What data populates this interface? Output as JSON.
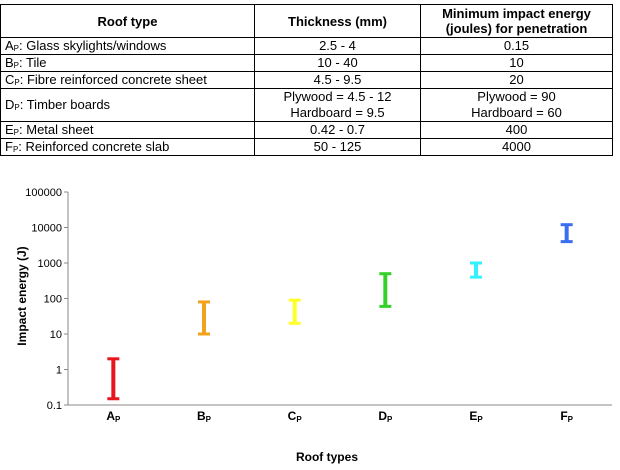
{
  "table": {
    "headers": [
      "Roof type",
      "Thickness (mm)",
      "Minimum impact energy (joules) for penetration"
    ],
    "rows": [
      {
        "letter": "A",
        "sub": "P",
        "name": ": Glass skylights/windows",
        "thickness": [
          "2.5 - 4"
        ],
        "energy": [
          "0.15"
        ]
      },
      {
        "letter": "B",
        "sub": "P",
        "name": ": Tile",
        "thickness": [
          "10 - 40"
        ],
        "energy": [
          "10"
        ]
      },
      {
        "letter": "C",
        "sub": "P",
        "name": ": Fibre reinforced concrete sheet",
        "thickness": [
          "4.5 - 9.5"
        ],
        "energy": [
          "20"
        ]
      },
      {
        "letter": "D",
        "sub": "P",
        "name": ": Timber boards",
        "thickness": [
          "Plywood = 4.5 - 12",
          "Hardboard = 9.5"
        ],
        "energy": [
          "Plywood = 90",
          "Hardboard = 60"
        ]
      },
      {
        "letter": "E",
        "sub": "P",
        "name": ": Metal sheet",
        "thickness": [
          "0.42 - 0.7"
        ],
        "energy": [
          "400"
        ]
      },
      {
        "letter": "F",
        "sub": "P",
        "name": ": Reinforced concrete slab",
        "thickness": [
          "50 - 125"
        ],
        "energy": [
          "4000"
        ]
      }
    ]
  },
  "chart_data": {
    "type": "range",
    "xlabel": "Roof types",
    "ylabel": "Impact energy (J)",
    "yscale": "log",
    "ylim": [
      0.1,
      100000
    ],
    "yticks": [
      "100000",
      "10000",
      "1000",
      "100",
      "10",
      "1",
      "0.1"
    ],
    "grid": false,
    "legend": "none",
    "categories": [
      {
        "letter": "A",
        "sub": "P"
      },
      {
        "letter": "B",
        "sub": "P"
      },
      {
        "letter": "C",
        "sub": "P"
      },
      {
        "letter": "D",
        "sub": "P"
      },
      {
        "letter": "E",
        "sub": "P"
      },
      {
        "letter": "F",
        "sub": "P"
      }
    ],
    "ranges": [
      {
        "low": 0.15,
        "high": 2,
        "color": "#e8141e"
      },
      {
        "low": 10,
        "high": 80,
        "color": "#f4a11c"
      },
      {
        "low": 20,
        "high": 90,
        "color": "#ffff2a"
      },
      {
        "low": 60,
        "high": 500,
        "color": "#33d12a"
      },
      {
        "low": 400,
        "high": 1000,
        "color": "#33f2ff"
      },
      {
        "low": 4000,
        "high": 12000,
        "color": "#3a6ef0"
      }
    ]
  }
}
